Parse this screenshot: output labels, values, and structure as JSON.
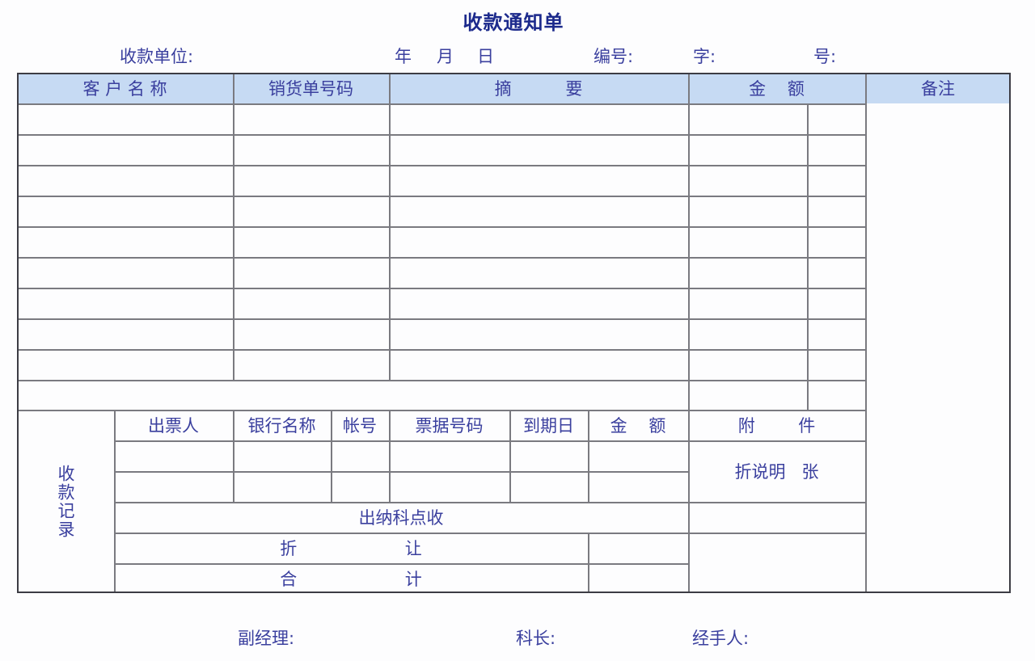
{
  "title": "收款通知单",
  "info": {
    "payee_unit": "收款单位:",
    "year": "年",
    "month": "月",
    "day": "日",
    "number": "编号:",
    "char": "字:",
    "no": "号:"
  },
  "header": {
    "customer_name": "客 户 名 称",
    "sales_order_no": "销货单号码",
    "summary": "摘          要",
    "amount": "金    额",
    "remarks": "备注"
  },
  "record": {
    "label": "收款记录",
    "columns": [
      "出票人",
      "银行名称",
      "帐号",
      "票据号码",
      "到期日",
      "金    额"
    ],
    "attachment": "附        件",
    "attachment_note": "折说明   张",
    "cashier_check": "出纳科点收",
    "discount": "折                    让",
    "total": "合                    计"
  },
  "footer": {
    "deputy_manager": "副经理:",
    "section_chief": "科长:",
    "handler": "经手人:"
  }
}
